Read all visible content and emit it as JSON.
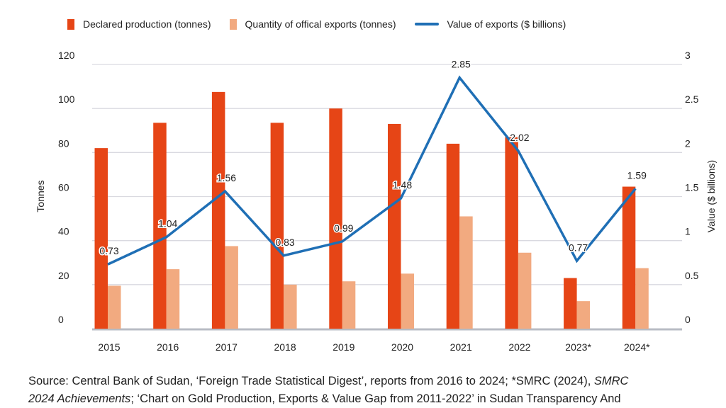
{
  "chart_data": {
    "type": "bar",
    "categories": [
      "2015",
      "2016",
      "2017",
      "2018",
      "2019",
      "2020",
      "2021",
      "2022",
      "2023*",
      "2024*"
    ],
    "series": [
      {
        "name": "Declared production (tonnes)",
        "kind": "bar",
        "axis": "left",
        "color": "#e64516",
        "values": [
          82,
          93.5,
          107.5,
          93.5,
          100,
          93,
          84,
          87,
          23,
          64.5
        ]
      },
      {
        "name": "Quantity of offical exports (tonnes)",
        "kind": "bar",
        "axis": "left",
        "color": "#f2aa80",
        "values": [
          19.5,
          27,
          37.5,
          20,
          21.5,
          25,
          51,
          34.5,
          12.5,
          27.5
        ]
      },
      {
        "name": "Value of exports ($ billions)",
        "kind": "line",
        "axis": "right",
        "color": "#1f6fb5",
        "values": [
          0.73,
          1.04,
          1.56,
          0.83,
          0.99,
          1.48,
          2.85,
          2.02,
          0.77,
          1.59
        ],
        "labels": [
          "0.73",
          "1.04",
          "1.56",
          "0.83",
          "0.99",
          "1.48",
          "2.85",
          "2.02",
          "0.77",
          "1.59"
        ]
      }
    ],
    "ylabel": "Tonnes",
    "y2label": "Value ($ billions)",
    "ylim": [
      0,
      120
    ],
    "y2lim": [
      0,
      3
    ],
    "yticks": [
      "0",
      "20",
      "40",
      "60",
      "80",
      "100",
      "120"
    ],
    "y2ticks": [
      "0",
      "0.5",
      "1",
      "1.5",
      "2",
      "2.5",
      "3"
    ],
    "grid": true,
    "legend": "top"
  },
  "source": {
    "line1_a": "Source: Central Bank of Sudan, ‘Foreign Trade Statistical Digest’, reports from 2016 to 2024; *SMRC (2024), ",
    "line1_b": "SMRC",
    "line2_a": "2024 Achievements",
    "line2_b": "; ‘Chart on Gold Production, Exports & Value Gap from 2011-2022’ in Sudan Transparency And"
  }
}
